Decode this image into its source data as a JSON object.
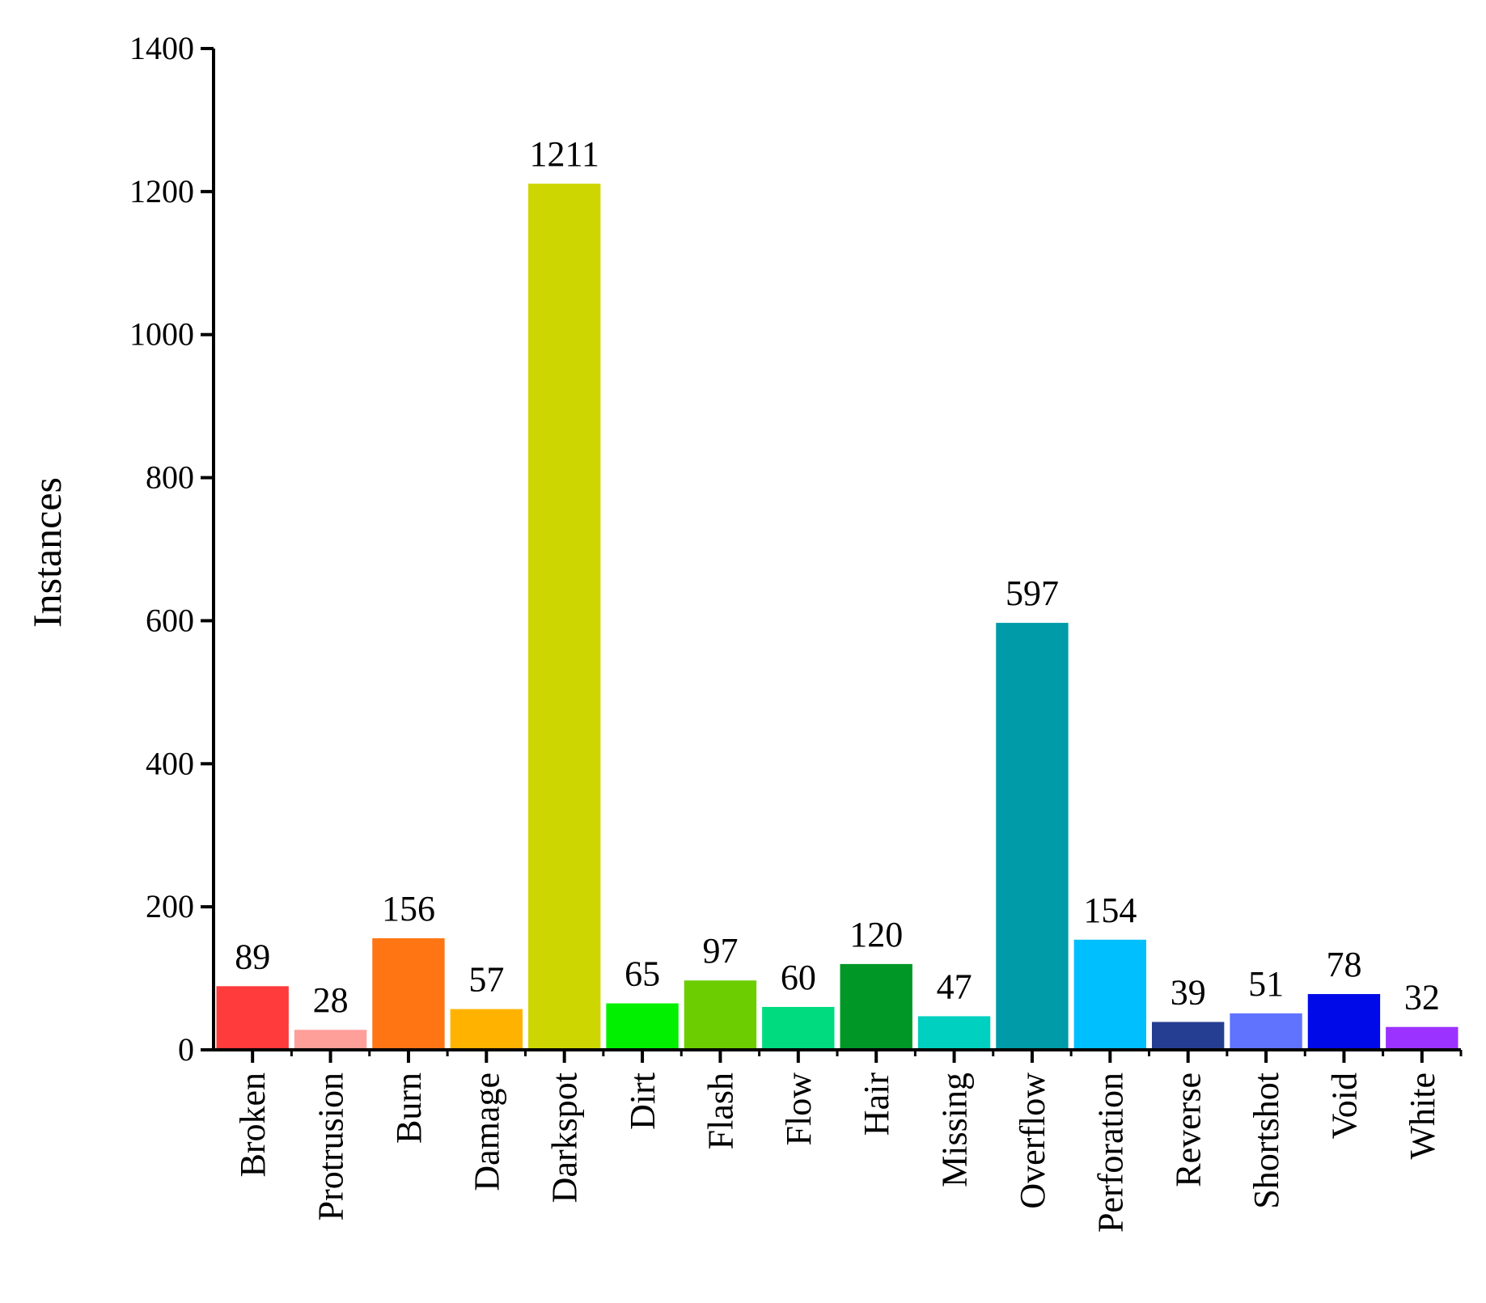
{
  "chart_data": {
    "type": "bar",
    "title": "",
    "xlabel": "",
    "ylabel": "Instances",
    "ylim": [
      0,
      1400
    ],
    "yticks": [
      0,
      200,
      400,
      600,
      800,
      1000,
      1200,
      1400
    ],
    "grid": false,
    "legend": "none",
    "categories": [
      "Broken",
      "Protrusion",
      "Burn",
      "Damage",
      "Darkspot",
      "Dirt",
      "Flash",
      "Flow",
      "Hair",
      "Missing",
      "Overflow",
      "Perforation",
      "Reverse",
      "Shortshot",
      "Void",
      "White"
    ],
    "values": [
      89,
      28,
      156,
      57,
      1211,
      65,
      97,
      60,
      120,
      47,
      597,
      154,
      39,
      51,
      78,
      32
    ],
    "colors": [
      "#ff3b3b",
      "#ff9f9a",
      "#ff7513",
      "#ffb300",
      "#cdd600",
      "#00f000",
      "#6ccd00",
      "#00db7f",
      "#009726",
      "#00d0c0",
      "#009ba8",
      "#00bfff",
      "#263e91",
      "#5f73ff",
      "#000ae8",
      "#9b32ff"
    ]
  }
}
